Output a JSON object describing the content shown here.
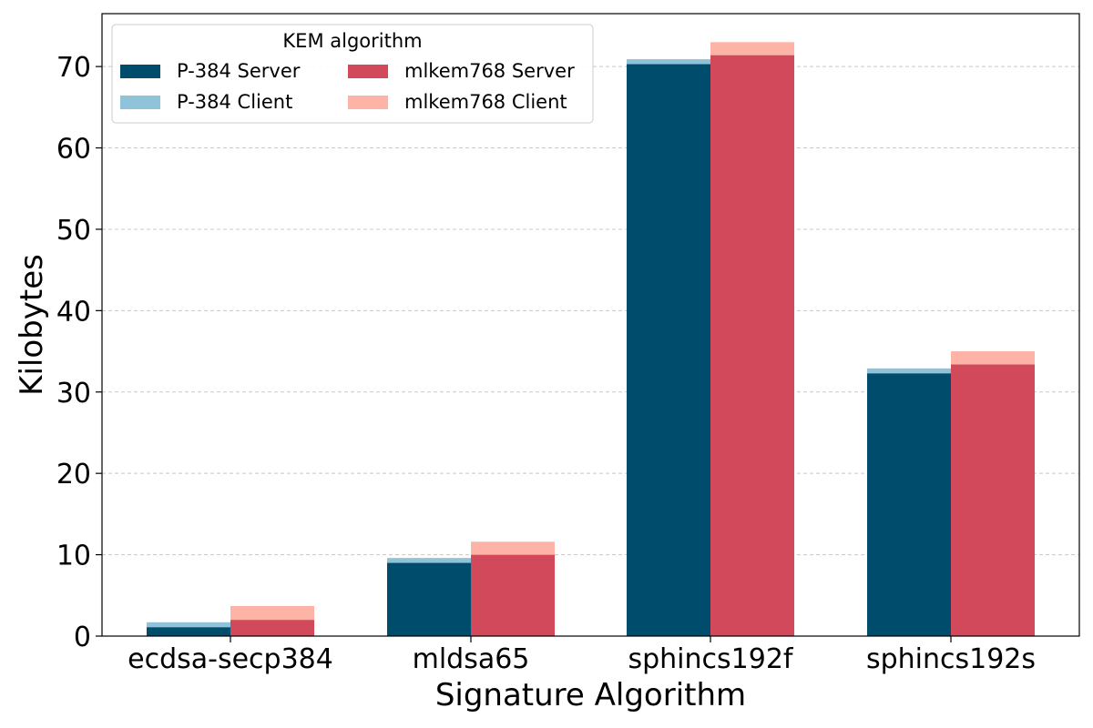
{
  "chart_data": {
    "type": "bar",
    "xlabel": "Signature Algorithm",
    "ylabel": "Kilobytes",
    "categories": [
      "ecdsa-secp384",
      "mldsa65",
      "sphincs192f",
      "sphincs192s"
    ],
    "ylim": [
      0,
      76.5
    ],
    "yticks": [
      0,
      10,
      20,
      30,
      40,
      50,
      60,
      70
    ],
    "grid": true,
    "legend": {
      "title": "KEM algorithm",
      "placement": "top-left",
      "columns": 2
    },
    "groups": [
      {
        "name": "P-384",
        "server": {
          "label": "P-384 Server",
          "color": "#004c6d",
          "values": [
            1.1,
            9.0,
            70.3,
            32.3
          ]
        },
        "client": {
          "label": "P-384 Client",
          "color": "#8fc3da",
          "values": [
            0.6,
            0.6,
            0.6,
            0.6
          ]
        }
      },
      {
        "name": "mlkem768",
        "server": {
          "label": "mlkem768 Server",
          "color": "#d1495b",
          "values": [
            2.0,
            10.0,
            71.4,
            33.4
          ]
        },
        "client": {
          "label": "mlkem768 Client",
          "color": "#fdb4a7",
          "values": [
            1.7,
            1.6,
            1.6,
            1.6
          ]
        }
      }
    ]
  }
}
